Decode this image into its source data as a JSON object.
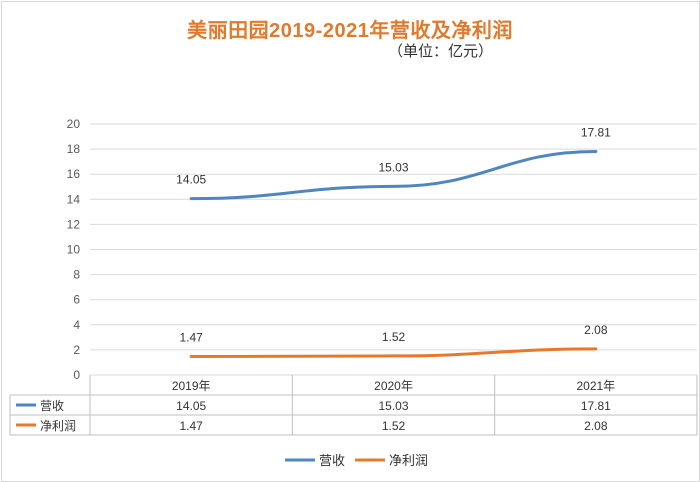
{
  "title": "美丽田园2019-2021年营收及净利润",
  "subtitle": "（单位：亿元）",
  "colors": {
    "revenue": "#4f86c0",
    "net_profit": "#e8782a"
  },
  "chart_data": {
    "type": "line",
    "title": "美丽田园2019-2021年营收及净利润",
    "unit": "（单位：亿元）",
    "categories": [
      "2019年",
      "2020年",
      "2021年"
    ],
    "series": [
      {
        "name": "营收",
        "values": [
          14.05,
          15.03,
          17.81
        ],
        "color": "#4f86c0"
      },
      {
        "name": "净利润",
        "values": [
          1.47,
          1.52,
          2.08
        ],
        "color": "#e8782a"
      }
    ],
    "ylim": [
      0,
      20
    ],
    "yticks": [
      0,
      2,
      4,
      6,
      8,
      10,
      12,
      14,
      16,
      18,
      20
    ],
    "grid": true,
    "legend": "bottom",
    "data_table": true
  }
}
